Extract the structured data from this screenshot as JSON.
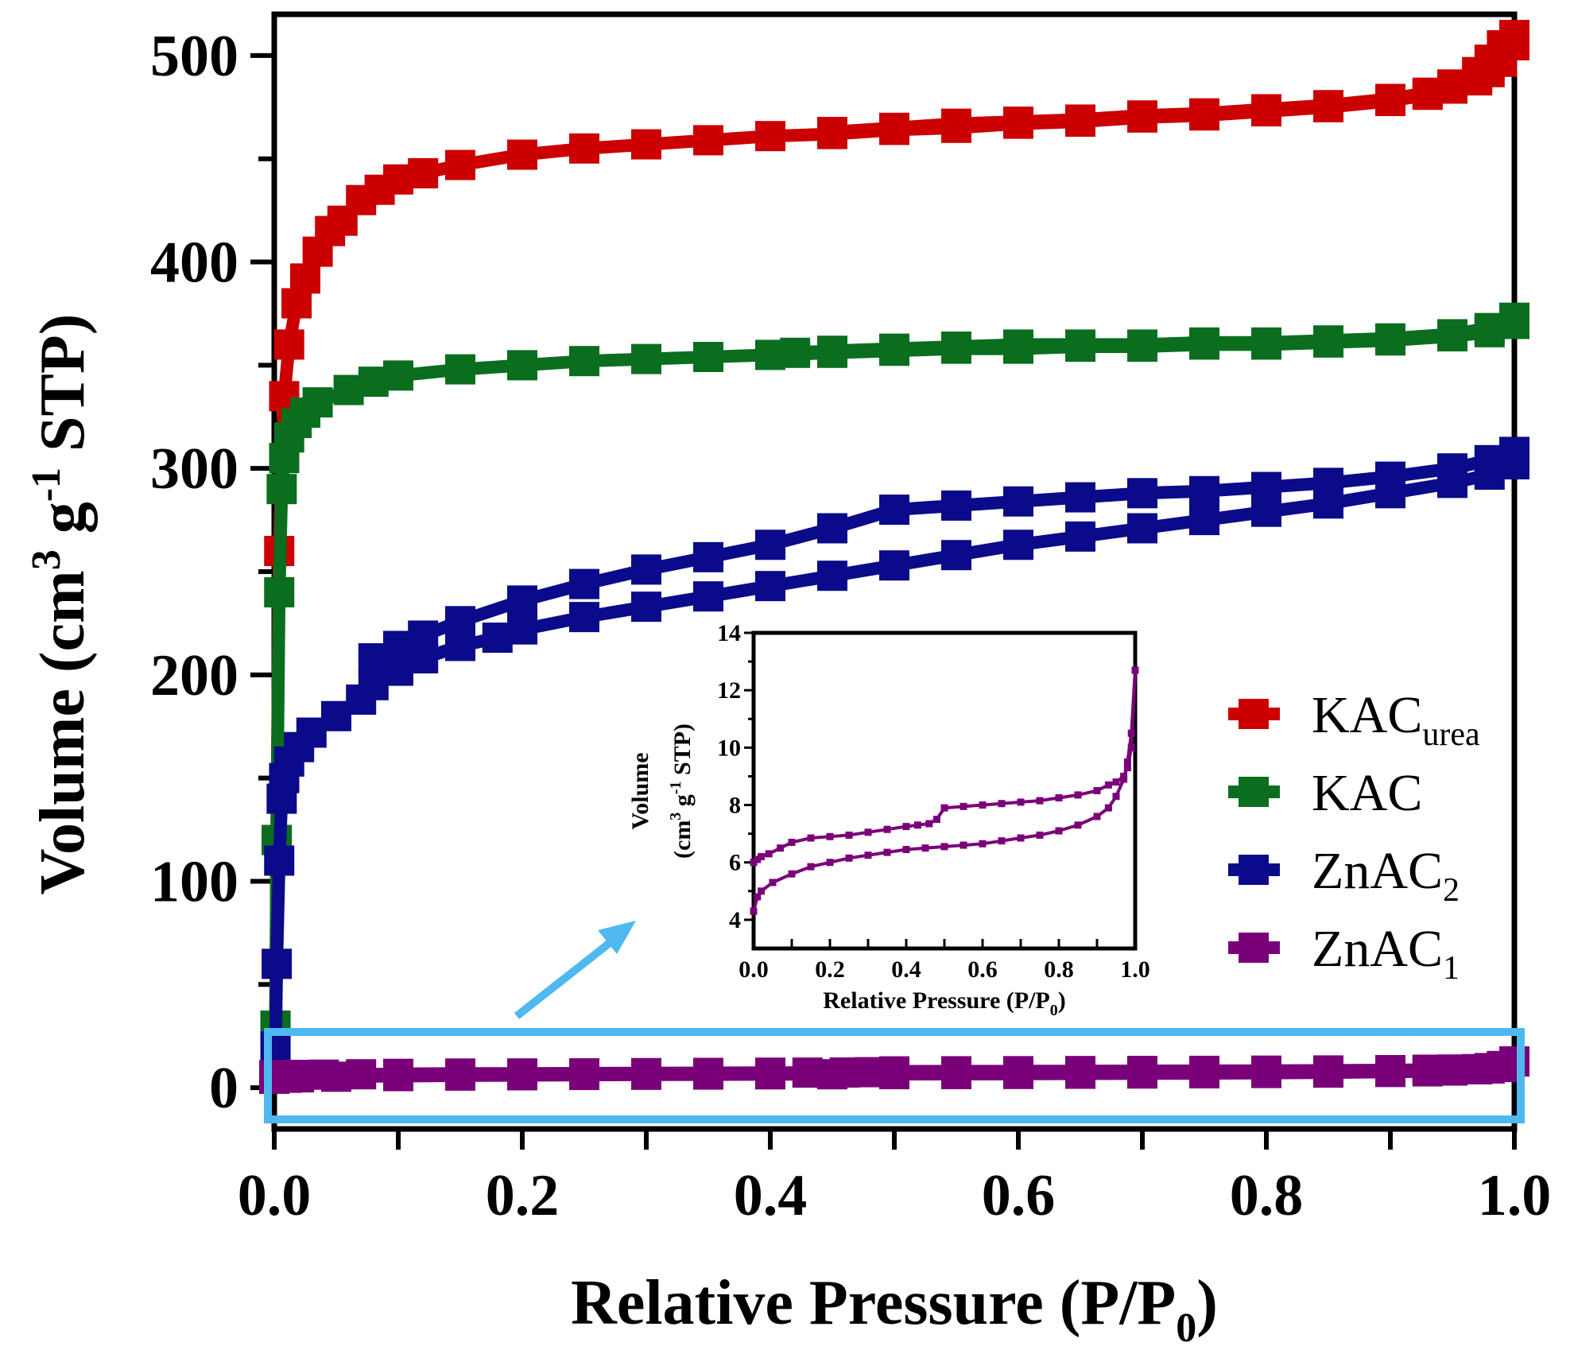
{
  "chart_data": [
    {
      "type": "line",
      "xlabel_parts": [
        "Relative Pressure (P/P",
        "0",
        ")"
      ],
      "ylabel_parts": [
        "Volume (cm",
        "3",
        " g",
        "-1",
        " STP)"
      ],
      "xlim": [
        0,
        1.0
      ],
      "ylim": [
        -20,
        520
      ],
      "x_ticks": [
        "0.0",
        "0.2",
        "0.4",
        "0.6",
        "0.8",
        "1.0"
      ],
      "x_tick_values": [
        0,
        0.2,
        0.4,
        0.6,
        0.8,
        1.0
      ],
      "y_ticks": [
        "0",
        "100",
        "200",
        "300",
        "400",
        "500"
      ],
      "y_tick_values": [
        0,
        100,
        200,
        300,
        400,
        500
      ],
      "legend_position": "right",
      "legend": [
        {
          "base": "KAC",
          "sub": "urea",
          "color": "#cc0000"
        },
        {
          "base": "KAC",
          "sub": "",
          "color": "#0a6e1e"
        },
        {
          "base": "ZnAC",
          "sub": "2",
          "color": "#0a0a8a"
        },
        {
          "base": "ZnAC",
          "sub": "1",
          "color": "#7a007a"
        }
      ],
      "series": [
        {
          "name": "KACurea",
          "color": "#cc0000",
          "adsorption": {
            "x": [
              0.0005,
              0.001,
              0.002,
              0.004,
              0.008,
              0.012,
              0.018,
              0.025,
              0.035,
              0.045,
              0.055,
              0.07,
              0.085,
              0.1,
              0.12,
              0.15,
              0.2,
              0.25,
              0.3,
              0.35,
              0.4,
              0.45,
              0.5,
              0.55,
              0.6,
              0.65,
              0.7,
              0.75,
              0.8,
              0.85,
              0.9,
              0.93,
              0.95,
              0.97,
              0.98,
              0.99,
              1.0
            ],
            "y": [
              5,
              30,
              120,
              260,
              335,
              360,
              380,
              392,
              405,
              415,
              420,
              430,
              435,
              440,
              443,
              447,
              452,
              455,
              457,
              459,
              461,
              462,
              464,
              465,
              467,
              468,
              470,
              471,
              473,
              475,
              478,
              481,
              484,
              488,
              492,
              497,
              505
            ]
          },
          "desorption": {
            "x": [
              1.0,
              0.99,
              0.98,
              0.97,
              0.95,
              0.93,
              0.9,
              0.85,
              0.8,
              0.75,
              0.7,
              0.65,
              0.6,
              0.55,
              0.5,
              0.45
            ],
            "y": [
              510,
              505,
              498,
              492,
              486,
              482,
              479,
              476,
              474,
              472,
              471,
              469,
              468,
              467,
              465,
              463
            ]
          }
        },
        {
          "name": "KAC",
          "color": "#0a6e1e",
          "adsorption": {
            "x": [
              0.0005,
              0.001,
              0.002,
              0.004,
              0.006,
              0.008,
              0.012,
              0.018,
              0.025,
              0.035,
              0.06,
              0.08,
              0.1,
              0.15,
              0.2,
              0.25,
              0.3,
              0.35,
              0.4,
              0.45,
              0.5,
              0.55,
              0.6,
              0.65,
              0.7,
              0.75,
              0.8,
              0.85,
              0.9,
              0.95,
              0.98,
              1.0
            ],
            "y": [
              5,
              30,
              120,
              240,
              290,
              305,
              315,
              322,
              327,
              332,
              338,
              342,
              345,
              348,
              350,
              352,
              353,
              354,
              355,
              356,
              357,
              358,
              358,
              359,
              359,
              360,
              360,
              361,
              362,
              364,
              366,
              370
            ]
          },
          "desorption": {
            "x": [
              1.0,
              0.98,
              0.95,
              0.9,
              0.85,
              0.8,
              0.75,
              0.7,
              0.65,
              0.6,
              0.55,
              0.5,
              0.45,
              0.42
            ],
            "y": [
              373,
              368,
              365,
              363,
              362,
              361,
              361,
              360,
              360,
              360,
              359,
              358,
              357,
              356
            ]
          }
        },
        {
          "name": "ZnAC2",
          "color": "#0a0a8a",
          "adsorption": {
            "x": [
              0.0005,
              0.001,
              0.002,
              0.004,
              0.006,
              0.008,
              0.012,
              0.02,
              0.03,
              0.05,
              0.07,
              0.08,
              0.1,
              0.12,
              0.15,
              0.18,
              0.2,
              0.25,
              0.3,
              0.35,
              0.4,
              0.45,
              0.5,
              0.55,
              0.6,
              0.65,
              0.7,
              0.75,
              0.8,
              0.85,
              0.9,
              0.95,
              0.98,
              1.0
            ],
            "y": [
              5,
              20,
              60,
              110,
              140,
              150,
              158,
              165,
              172,
              180,
              188,
              195,
              202,
              208,
              214,
              218,
              222,
              228,
              233,
              238,
              243,
              248,
              253,
              258,
              263,
              267,
              271,
              275,
              279,
              283,
              288,
              293,
              297,
              302
            ]
          },
          "desorption": {
            "x": [
              1.0,
              0.98,
              0.95,
              0.9,
              0.85,
              0.8,
              0.75,
              0.7,
              0.65,
              0.6,
              0.55,
              0.5,
              0.45,
              0.4,
              0.35,
              0.3,
              0.25,
              0.2,
              0.15,
              0.12,
              0.1,
              0.08
            ],
            "y": [
              308,
              304,
              300,
              296,
              293,
              291,
              289,
              288,
              286,
              284,
              282,
              280,
              271,
              263,
              257,
              251,
              244,
              236,
              226,
              219,
              214,
              208
            ]
          }
        },
        {
          "name": "ZnAC1",
          "color": "#7a007a",
          "adsorption": {
            "x": [
              0.0,
              0.01,
              0.02,
              0.05,
              0.1,
              0.15,
              0.2,
              0.25,
              0.3,
              0.35,
              0.4,
              0.45,
              0.5,
              0.55,
              0.6,
              0.65,
              0.7,
              0.75,
              0.8,
              0.85,
              0.9,
              0.93,
              0.95,
              0.97,
              0.98,
              0.99,
              1.0
            ],
            "y": [
              4.3,
              4.8,
              5.0,
              5.3,
              5.6,
              5.85,
              6.0,
              6.15,
              6.25,
              6.35,
              6.45,
              6.5,
              6.55,
              6.6,
              6.65,
              6.75,
              6.85,
              6.95,
              7.1,
              7.3,
              7.6,
              7.9,
              8.3,
              8.9,
              9.5,
              10.5,
              12.7
            ]
          },
          "desorption": {
            "x": [
              1.0,
              0.99,
              0.98,
              0.97,
              0.95,
              0.93,
              0.9,
              0.85,
              0.8,
              0.75,
              0.7,
              0.65,
              0.6,
              0.55,
              0.5,
              0.48,
              0.46,
              0.43,
              0.4,
              0.35,
              0.3,
              0.25,
              0.2,
              0.15,
              0.1,
              0.07,
              0.04,
              0.02,
              0.01,
              0.0
            ],
            "y": [
              12.7,
              10.0,
              9.3,
              9.0,
              8.8,
              8.7,
              8.5,
              8.35,
              8.25,
              8.15,
              8.1,
              8.05,
              8.0,
              7.95,
              7.9,
              7.5,
              7.35,
              7.3,
              7.25,
              7.15,
              7.05,
              6.95,
              6.9,
              6.85,
              6.7,
              6.5,
              6.3,
              6.2,
              6.1,
              6.0
            ]
          }
        }
      ]
    },
    {
      "type": "line",
      "inset": true,
      "xlabel_parts": [
        "Relative Pressure (P/P",
        "0",
        ")"
      ],
      "ylabel_line1": "Volume",
      "ylabel_parts": [
        "(cm",
        "3",
        " g",
        "-1",
        " STP)"
      ],
      "xlim": [
        0,
        1.0
      ],
      "ylim": [
        3,
        14
      ],
      "x_ticks": [
        "0.0",
        "0.2",
        "0.4",
        "0.6",
        "0.8",
        "1.0"
      ],
      "x_tick_values": [
        0,
        0.2,
        0.4,
        0.6,
        0.8,
        1.0
      ],
      "y_ticks": [
        "4",
        "6",
        "8",
        "10",
        "12",
        "14"
      ],
      "y_tick_values": [
        4,
        6,
        8,
        10,
        12,
        14
      ],
      "series_ref": "ZnAC1"
    }
  ],
  "highlight_color": "#4fb8f0"
}
